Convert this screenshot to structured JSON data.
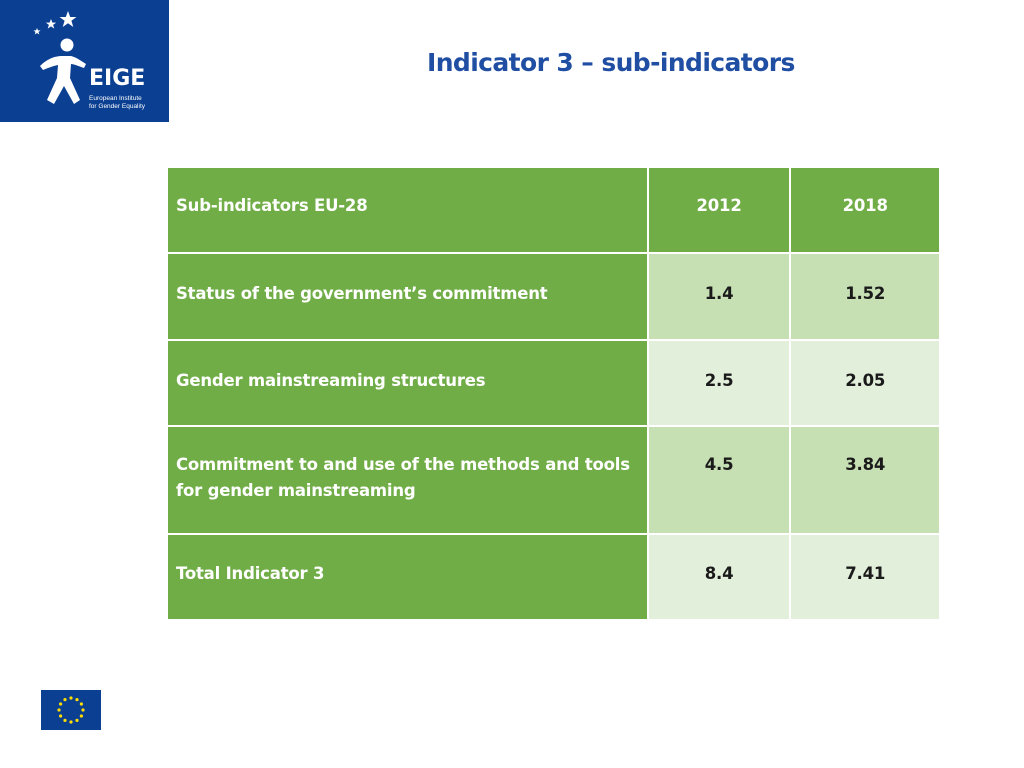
{
  "logo": {
    "name": "EIGE",
    "subtitle_line1": "European Institute",
    "subtitle_line2": "for Gender Equality",
    "brand_color": "#0b3f92"
  },
  "title": "Indicator 3 – sub-indicators",
  "table": {
    "header": {
      "label": "Sub-indicators EU-28",
      "year1": "2012",
      "year2": "2018"
    },
    "rows": [
      {
        "label": "Status of the government’s commitment",
        "v2012": "1.4",
        "v2018": "1.52"
      },
      {
        "label": "Gender mainstreaming structures",
        "v2012": "2.5",
        "v2018": "2.05"
      },
      {
        "label": "Commitment to and use of the methods and tools for gender mainstreaming",
        "v2012": "4.5",
        "v2018": "3.84"
      },
      {
        "label": "Total Indicator 3",
        "v2012": "8.4",
        "v2018": "7.41"
      }
    ],
    "colors": {
      "header_green": "#70ad47",
      "light_green": "#c6e0b4",
      "lighter_green": "#e2efda"
    }
  },
  "footer": {
    "flag_icon": "eu-flag-icon"
  }
}
